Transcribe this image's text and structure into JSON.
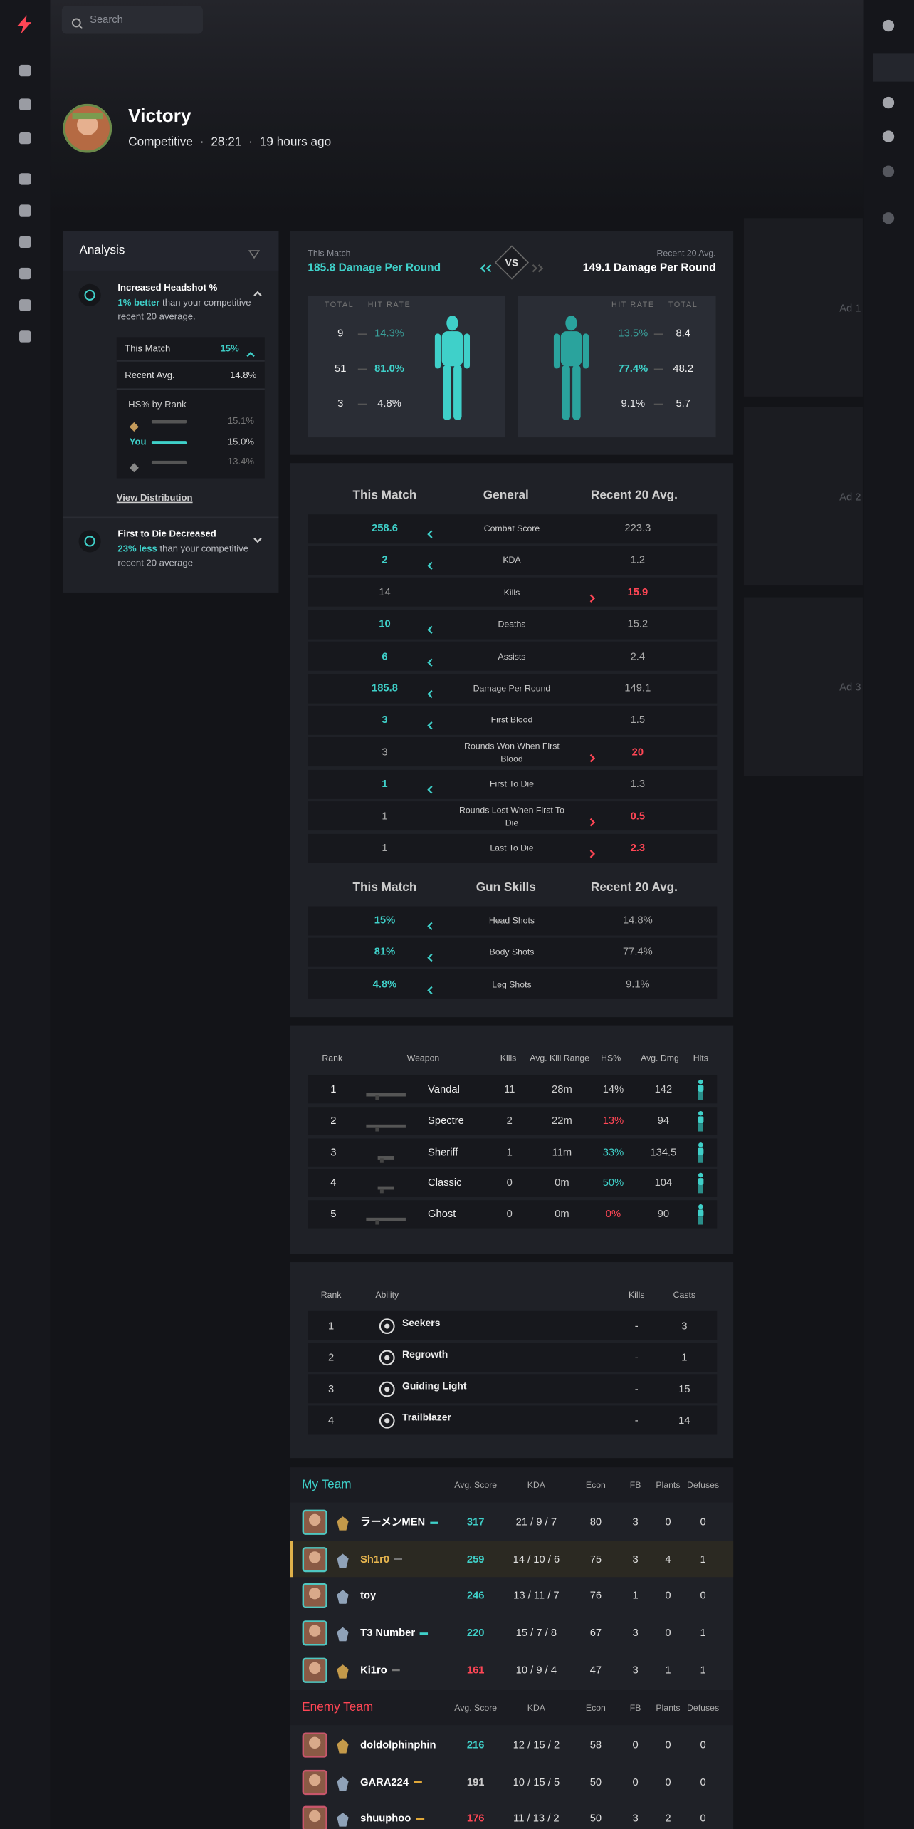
{
  "nav": {
    "search_placeholder": "Search"
  },
  "match": {
    "result": "Victory",
    "mode": "Competitive",
    "separator": "·",
    "duration": "28:21",
    "ago": "19 hours ago"
  },
  "analysis": {
    "title": "Analysis",
    "insights": [
      {
        "title": "Increased Headshot %",
        "highlight": "1% better",
        "text": "than your competitive recent 20 average.",
        "expanded": true,
        "this_match_label": "This Match",
        "this_match_value": "15%",
        "recent_label": "Recent Avg.",
        "recent_value": "14.8%",
        "rank_title": "HS% by Rank",
        "ranks": [
          {
            "value": "15.1%"
          },
          {
            "label": "You",
            "value": "15.0%"
          },
          {
            "value": "13.4%"
          }
        ],
        "link": "View Distribution"
      },
      {
        "title": "First to Die Decreased",
        "highlight": "23% less",
        "text": "than your competitive recent 20 average",
        "expanded": false
      }
    ]
  },
  "damage": {
    "left_label": "This Match",
    "left_value": "185.8 Damage Per Round",
    "vs": "VS",
    "right_label": "Recent 20 Avg.",
    "right_value": "149.1 Damage Per Round",
    "total_header": "TOTAL",
    "rate_header": "HIT RATE",
    "left_rows": [
      {
        "total": "9",
        "rate": "14.3%"
      },
      {
        "total": "51",
        "rate": "81.0%"
      },
      {
        "total": "3",
        "rate": "4.8%"
      }
    ],
    "right_rows": [
      {
        "total": "8.4",
        "rate": "13.5%"
      },
      {
        "total": "48.2",
        "rate": "77.4%"
      },
      {
        "total": "5.7",
        "rate": "9.1%"
      }
    ]
  },
  "comparison": [
    {
      "headers": [
        "This Match",
        "General",
        "Recent 20 Avg."
      ],
      "rows": [
        {
          "match": "258.6",
          "label": "Combat Score",
          "avg": "223.3",
          "better": "match"
        },
        {
          "match": "2",
          "label": "KDA",
          "avg": "1.2",
          "better": "match"
        },
        {
          "match": "14",
          "label": "Kills",
          "avg": "15.9",
          "better": "avg"
        },
        {
          "match": "10",
          "label": "Deaths",
          "avg": "15.2",
          "better": "match"
        },
        {
          "match": "6",
          "label": "Assists",
          "avg": "2.4",
          "better": "match"
        },
        {
          "match": "185.8",
          "label": "Damage Per Round",
          "avg": "149.1",
          "better": "match"
        },
        {
          "match": "3",
          "label": "First Blood",
          "avg": "1.5",
          "better": "match"
        },
        {
          "match": "3",
          "label": "Rounds Won When First Blood",
          "avg": "20",
          "better": "avg"
        },
        {
          "match": "1",
          "label": "First To Die",
          "avg": "1.3",
          "better": "match"
        },
        {
          "match": "1",
          "label": "Rounds Lost When First To Die",
          "avg": "0.5",
          "better": "avg"
        },
        {
          "match": "1",
          "label": "Last To Die",
          "avg": "2.3",
          "better": "avg"
        }
      ]
    },
    {
      "headers": [
        "This Match",
        "Gun Skills",
        "Recent 20 Avg."
      ],
      "rows": [
        {
          "match": "15%",
          "label": "Head Shots",
          "avg": "14.8%",
          "better": "match"
        },
        {
          "match": "81%",
          "label": "Body Shots",
          "avg": "77.4%",
          "better": "match"
        },
        {
          "match": "4.8%",
          "label": "Leg Shots",
          "avg": "9.1%",
          "better": "match"
        }
      ]
    }
  ],
  "weapons": {
    "headers": [
      "Rank",
      "Weapon",
      "Kills",
      "Avg. Kill Range",
      "HS%",
      "Avg. Dmg",
      "Hits"
    ],
    "rows": [
      {
        "rank": "1",
        "name": "Vandal",
        "kills": "11",
        "range": "28m",
        "hs": "14%",
        "hs_tone": "neutral",
        "dmg": "142"
      },
      {
        "rank": "2",
        "name": "Spectre",
        "kills": "2",
        "range": "22m",
        "hs": "13%",
        "hs_tone": "bad",
        "dmg": "94"
      },
      {
        "rank": "3",
        "name": "Sheriff",
        "kills": "1",
        "range": "11m",
        "hs": "33%",
        "hs_tone": "good",
        "dmg": "134.5"
      },
      {
        "rank": "4",
        "name": "Classic",
        "kills": "0",
        "range": "0m",
        "hs": "50%",
        "hs_tone": "good",
        "dmg": "104"
      },
      {
        "rank": "5",
        "name": "Ghost",
        "kills": "0",
        "range": "0m",
        "hs": "0%",
        "hs_tone": "bad",
        "dmg": "90"
      }
    ]
  },
  "abilities": {
    "headers": [
      "Rank",
      "Ability",
      "Kills",
      "Casts"
    ],
    "rows": [
      {
        "rank": "1",
        "name": "Seekers",
        "kills": "-",
        "casts": "3"
      },
      {
        "rank": "2",
        "name": "Regrowth",
        "kills": "-",
        "casts": "1"
      },
      {
        "rank": "3",
        "name": "Guiding Light",
        "kills": "-",
        "casts": "15"
      },
      {
        "rank": "4",
        "name": "Trailblazer",
        "kills": "-",
        "casts": "14"
      }
    ]
  },
  "teams": {
    "columns": [
      "Avg. Score",
      "KDA",
      "Econ",
      "FB",
      "Plants",
      "Defuses"
    ],
    "list": [
      {
        "name": "My Team",
        "color": "#3fd0c9",
        "players": [
          {
            "name": "ラーメンMEN",
            "score": "317",
            "kda": "21 / 9 / 7",
            "econ": "80",
            "fb": "3",
            "plants": "0",
            "defuses": "0",
            "score_tone": "good",
            "party": "#3fd0c9"
          },
          {
            "name": "Sh1r0",
            "score": "259",
            "kda": "14 / 10 / 6",
            "econ": "75",
            "fb": "3",
            "plants": "4",
            "defuses": "1",
            "score_tone": "good",
            "party": "#777",
            "highlight": true
          },
          {
            "name": "toy",
            "score": "246",
            "kda": "13 / 11 / 7",
            "econ": "76",
            "fb": "1",
            "plants": "0",
            "defuses": "0",
            "score_tone": "good"
          },
          {
            "name": "T3 Number",
            "score": "220",
            "kda": "15 / 7 / 8",
            "econ": "67",
            "fb": "3",
            "plants": "0",
            "defuses": "1",
            "score_tone": "good",
            "party": "#3fd0c9"
          },
          {
            "name": "Ki1ro",
            "score": "161",
            "kda": "10 / 9 / 4",
            "econ": "47",
            "fb": "3",
            "plants": "1",
            "defuses": "1",
            "score_tone": "bad",
            "party": "#777"
          }
        ]
      },
      {
        "name": "Enemy Team",
        "color": "#ff4655",
        "players": [
          {
            "name": "doldolphinphin",
            "score": "216",
            "kda": "12 / 15 / 2",
            "econ": "58",
            "fb": "0",
            "plants": "0",
            "defuses": "0",
            "score_tone": "good"
          },
          {
            "name": "GARA224",
            "score": "191",
            "kda": "10 / 15 / 5",
            "econ": "50",
            "fb": "0",
            "plants": "0",
            "defuses": "0",
            "score_tone": "neutral",
            "party": "#e0a83a"
          },
          {
            "name": "shuuphoo",
            "score": "176",
            "kda": "11 / 13 / 2",
            "econ": "50",
            "fb": "3",
            "plants": "2",
            "defuses": "0",
            "score_tone": "bad",
            "party": "#e0a83a"
          }
        ]
      }
    ]
  },
  "ads": [
    "Ad 1",
    "Ad 2",
    "Ad 3"
  ]
}
